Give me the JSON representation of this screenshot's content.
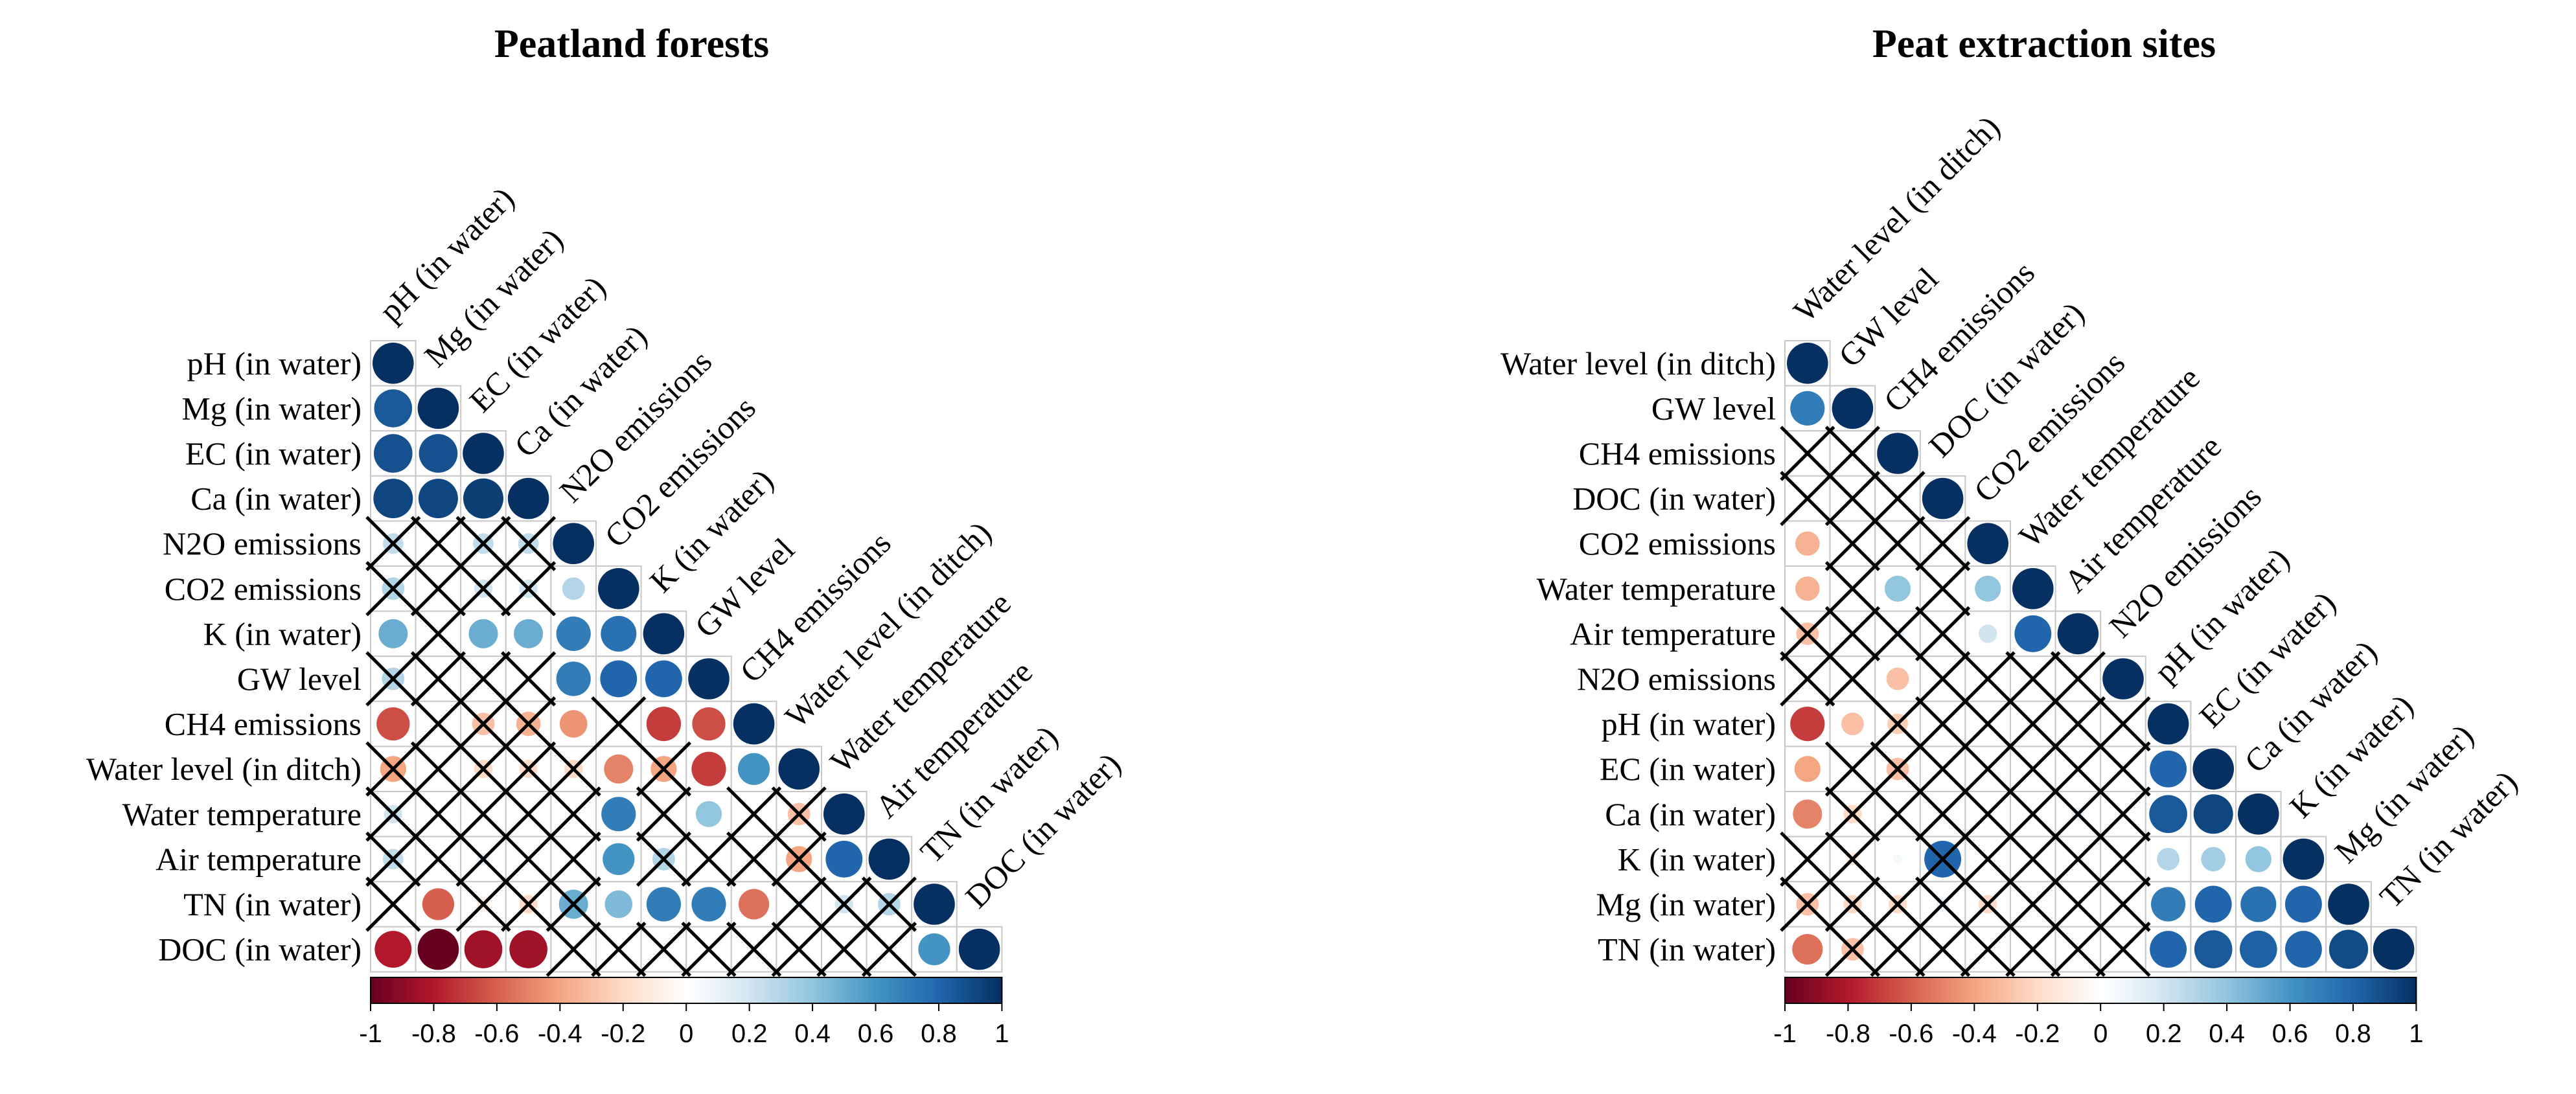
{
  "chart_data": [
    {
      "type": "correlogram",
      "title": "Peatland forests",
      "variables": [
        "pH (in water)",
        "Mg (in water)",
        "EC (in water)",
        "Ca (in water)",
        "N2O emissions",
        "CO2 emissions",
        "K (in water)",
        "GW level",
        "CH4 emissions",
        "Water level (in ditch)",
        "Water temperature",
        "Air temperature",
        "TN (in water)",
        "DOC (in water)"
      ],
      "matrix": [
        [
          1
        ],
        [
          0.85,
          1
        ],
        [
          0.88,
          0.88,
          1
        ],
        [
          0.92,
          0.92,
          0.95,
          1
        ],
        [
          0.25,
          0.05,
          0.25,
          0.25,
          1
        ],
        [
          0.3,
          0.05,
          0.2,
          0.2,
          0.3,
          1
        ],
        [
          0.5,
          0.05,
          0.5,
          0.5,
          0.7,
          0.75,
          1
        ],
        [
          0.3,
          0.05,
          0.05,
          0.05,
          0.7,
          0.8,
          0.8,
          1
        ],
        [
          -0.65,
          -0.05,
          -0.3,
          -0.35,
          -0.45,
          -0.05,
          -0.7,
          -0.65,
          1
        ],
        [
          -0.4,
          -0.05,
          -0.2,
          -0.2,
          -0.2,
          -0.5,
          -0.4,
          -0.7,
          0.6,
          1
        ],
        [
          0.2,
          0.05,
          0.05,
          0.05,
          0.05,
          0.7,
          0.1,
          0.4,
          0.05,
          -0.3,
          1
        ],
        [
          0.25,
          0.05,
          0.1,
          0.05,
          0.05,
          0.6,
          0.3,
          0.05,
          0.05,
          -0.4,
          0.8,
          1
        ],
        [
          0.05,
          -0.6,
          -0.1,
          -0.2,
          0.5,
          0.45,
          0.7,
          0.7,
          -0.55,
          0.1,
          0.2,
          0.3,
          1
        ],
        [
          -0.8,
          -1.0,
          -0.85,
          -0.85,
          -0.05,
          -0.05,
          -0.05,
          -0.05,
          0.05,
          0.05,
          0.05,
          0.05,
          0.6,
          1
        ]
      ],
      "insignificant": [
        [
          4,
          0
        ],
        [
          4,
          1
        ],
        [
          4,
          2
        ],
        [
          4,
          3
        ],
        [
          5,
          0
        ],
        [
          5,
          1
        ],
        [
          5,
          2
        ],
        [
          5,
          3
        ],
        [
          6,
          1
        ],
        [
          7,
          0
        ],
        [
          7,
          1
        ],
        [
          7,
          2
        ],
        [
          7,
          3
        ],
        [
          8,
          1
        ],
        [
          8,
          2
        ],
        [
          8,
          3
        ],
        [
          8,
          5
        ],
        [
          9,
          0
        ],
        [
          9,
          1
        ],
        [
          9,
          2
        ],
        [
          9,
          3
        ],
        [
          9,
          4
        ],
        [
          9,
          6
        ],
        [
          10,
          0
        ],
        [
          10,
          1
        ],
        [
          10,
          2
        ],
        [
          10,
          3
        ],
        [
          10,
          4
        ],
        [
          10,
          6
        ],
        [
          10,
          8
        ],
        [
          10,
          9
        ],
        [
          11,
          0
        ],
        [
          11,
          1
        ],
        [
          11,
          2
        ],
        [
          11,
          3
        ],
        [
          11,
          4
        ],
        [
          11,
          6
        ],
        [
          11,
          7
        ],
        [
          11,
          8
        ],
        [
          11,
          9
        ],
        [
          12,
          0
        ],
        [
          12,
          2
        ],
        [
          12,
          3
        ],
        [
          12,
          4
        ],
        [
          12,
          9
        ],
        [
          12,
          10
        ],
        [
          12,
          11
        ],
        [
          13,
          4
        ],
        [
          13,
          5
        ],
        [
          13,
          6
        ],
        [
          13,
          7
        ],
        [
          13,
          8
        ],
        [
          13,
          9
        ],
        [
          13,
          10
        ],
        [
          13,
          11
        ]
      ],
      "colorbar": {
        "min": -1,
        "max": 1,
        "ticks": [
          "-1",
          "-0.8",
          "-0.6",
          "-0.4",
          "-0.2",
          "0",
          "0.2",
          "0.4",
          "0.6",
          "0.8",
          "1"
        ]
      }
    },
    {
      "type": "correlogram",
      "title": "Peat extraction sites",
      "variables": [
        "Water level (in ditch)",
        "GW level",
        "CH4 emissions",
        "DOC (in water)",
        "CO2 emissions",
        "Water temperature",
        "Air temperature",
        "N2O emissions",
        "pH (in water)",
        "EC (in water)",
        "Ca (in water)",
        "K (in water)",
        "Mg (in water)",
        "TN (in water)"
      ],
      "matrix": [
        [
          1
        ],
        [
          0.7,
          1
        ],
        [
          -0.05,
          -0.05,
          1
        ],
        [
          -0.05,
          -0.05,
          0.05,
          1
        ],
        [
          -0.35,
          -0.05,
          -0.05,
          -0.05,
          1
        ],
        [
          -0.35,
          -0.05,
          0.4,
          -0.05,
          0.4,
          1
        ],
        [
          -0.3,
          -0.05,
          0.1,
          -0.05,
          0.2,
          0.8,
          1
        ],
        [
          -0.05,
          -0.05,
          -0.3,
          -0.05,
          -0.05,
          -0.05,
          -0.05,
          1
        ],
        [
          -0.7,
          -0.3,
          -0.25,
          -0.05,
          -0.05,
          -0.05,
          0.05,
          -0.05,
          1
        ],
        [
          -0.4,
          -0.05,
          -0.3,
          -0.05,
          -0.05,
          -0.05,
          0.05,
          -0.05,
          0.8,
          1
        ],
        [
          -0.5,
          -0.2,
          -0.05,
          -0.05,
          -0.05,
          -0.05,
          0.1,
          -0.05,
          0.85,
          0.92,
          1
        ],
        [
          -0.05,
          -0.1,
          0.05,
          0.8,
          -0.05,
          -0.05,
          -0.05,
          -0.05,
          0.3,
          0.35,
          0.4,
          1
        ],
        [
          -0.3,
          -0.2,
          -0.2,
          0.1,
          -0.2,
          -0.05,
          -0.05,
          -0.05,
          0.7,
          0.8,
          0.75,
          0.8,
          1
        ],
        [
          -0.55,
          -0.3,
          -0.05,
          -0.05,
          -0.05,
          -0.05,
          -0.05,
          -0.05,
          0.8,
          0.85,
          0.82,
          0.8,
          0.9,
          1
        ]
      ],
      "insignificant": [
        [
          2,
          0
        ],
        [
          2,
          1
        ],
        [
          3,
          0
        ],
        [
          3,
          1
        ],
        [
          3,
          2
        ],
        [
          4,
          1
        ],
        [
          4,
          2
        ],
        [
          4,
          3
        ],
        [
          5,
          1
        ],
        [
          5,
          3
        ],
        [
          6,
          0
        ],
        [
          6,
          1
        ],
        [
          6,
          2
        ],
        [
          6,
          3
        ],
        [
          7,
          0
        ],
        [
          7,
          1
        ],
        [
          7,
          3
        ],
        [
          7,
          4
        ],
        [
          7,
          5
        ],
        [
          7,
          6
        ],
        [
          8,
          2
        ],
        [
          8,
          3
        ],
        [
          8,
          4
        ],
        [
          8,
          5
        ],
        [
          8,
          6
        ],
        [
          8,
          7
        ],
        [
          9,
          1
        ],
        [
          9,
          2
        ],
        [
          9,
          3
        ],
        [
          9,
          4
        ],
        [
          9,
          5
        ],
        [
          9,
          6
        ],
        [
          9,
          7
        ],
        [
          10,
          1
        ],
        [
          10,
          2
        ],
        [
          10,
          3
        ],
        [
          10,
          4
        ],
        [
          10,
          5
        ],
        [
          10,
          6
        ],
        [
          10,
          7
        ],
        [
          11,
          0
        ],
        [
          11,
          1
        ],
        [
          11,
          3
        ],
        [
          11,
          4
        ],
        [
          11,
          5
        ],
        [
          11,
          6
        ],
        [
          11,
          7
        ],
        [
          12,
          0
        ],
        [
          12,
          1
        ],
        [
          12,
          2
        ],
        [
          12,
          3
        ],
        [
          12,
          4
        ],
        [
          12,
          5
        ],
        [
          12,
          6
        ],
        [
          12,
          7
        ],
        [
          13,
          1
        ],
        [
          13,
          2
        ],
        [
          13,
          3
        ],
        [
          13,
          4
        ],
        [
          13,
          5
        ],
        [
          13,
          6
        ],
        [
          13,
          7
        ]
      ],
      "colorbar": {
        "min": -1,
        "max": 1,
        "ticks": [
          "-1",
          "-0.8",
          "-0.6",
          "-0.4",
          "-0.2",
          "0",
          "0.2",
          "0.4",
          "0.6",
          "0.8",
          "1"
        ]
      }
    }
  ]
}
